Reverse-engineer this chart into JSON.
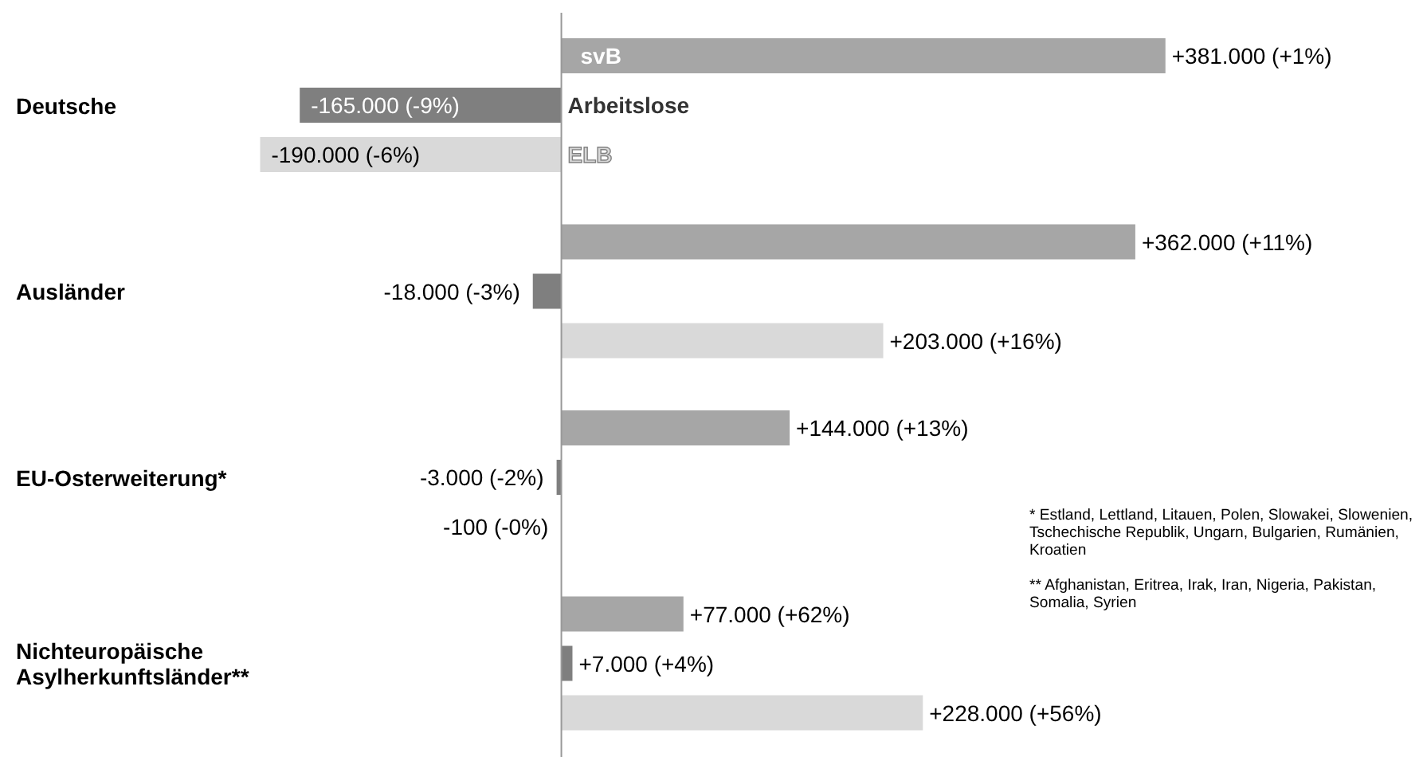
{
  "chart_data": {
    "type": "bar",
    "orientation": "horizontal",
    "categories": [
      "Deutsche",
      "Ausländer",
      "EU-Osterweiterung*",
      "Nichteuropäische Asylherkunftsländer**"
    ],
    "series": [
      {
        "name": "svB",
        "color": "#a6a6a6",
        "values": [
          381000,
          362000,
          144000,
          77000
        ],
        "value_labels": [
          "+381.000 (+1%)",
          "+362.000 (+11%)",
          "+144.000 (+13%)",
          "+77.000 (+62%)"
        ]
      },
      {
        "name": "Arbeitslose",
        "color": "#7f7f7f",
        "values": [
          -165000,
          -18000,
          -3000,
          7000
        ],
        "value_labels": [
          "-165.000 (-9%)",
          "-18.000 (-3%)",
          "-3.000 (-2%)",
          "+7.000 (+4%)"
        ]
      },
      {
        "name": "ELB",
        "color": "#d9d9d9",
        "values": [
          -190000,
          203000,
          -100,
          228000
        ],
        "value_labels": [
          "-190.000 (-6%)",
          "+203.000 (+16%)",
          "-100 (-0%)",
          "+228.000 (+56%)"
        ]
      }
    ],
    "annotations": [
      "* Estland, Lettland, Litauen, Polen, Slowakei, Slowenien, Tschechische Republik, Ungarn, Bulgarien, Rumänien, Kroatien",
      "** Afghanistan, Eritrea, Irak, Iran, Nigeria, Pakistan, Somalia, Syrien"
    ],
    "legend": false
  }
}
